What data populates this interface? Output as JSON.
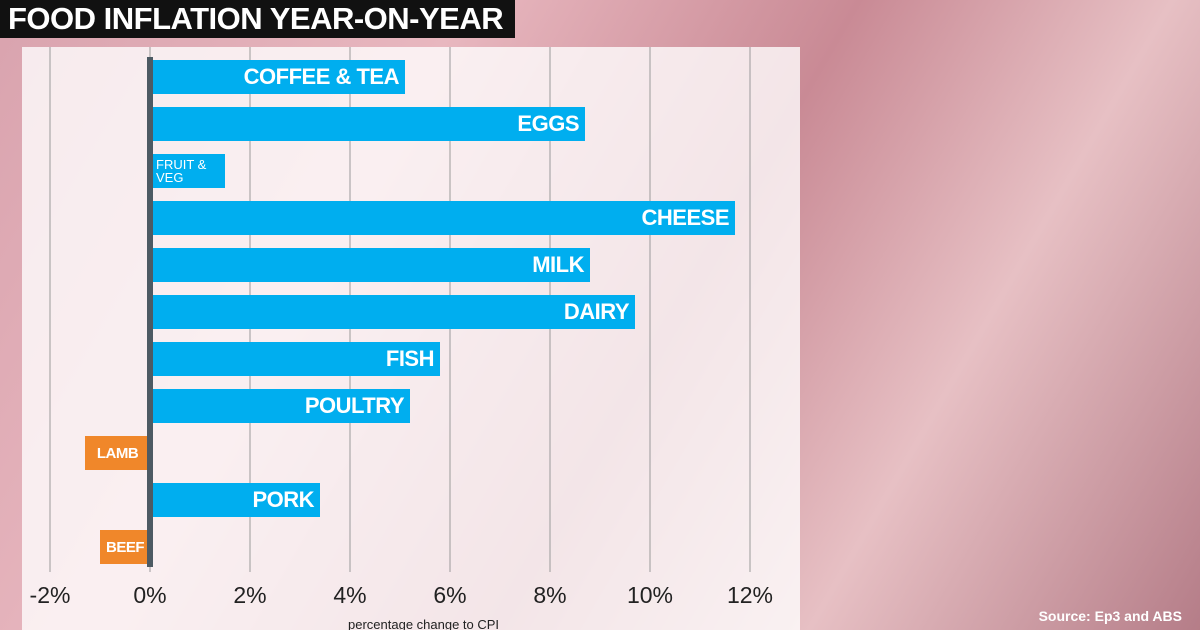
{
  "chart_data": {
    "type": "bar",
    "orientation": "horizontal",
    "title": "FOOD INFLATION YEAR-ON-YEAR",
    "x_label": "percentage change to CPI",
    "source": "Source: Ep3 and ABS",
    "categories": [
      "COFFEE & TEA",
      "EGGS",
      "FRUIT & VEG",
      "CHEESE",
      "MILK",
      "DAIRY",
      "FISH",
      "POULTRY",
      "LAMB",
      "PORK",
      "BEEF"
    ],
    "values": [
      5.1,
      8.7,
      1.5,
      11.7,
      8.8,
      9.7,
      5.8,
      5.2,
      -1.3,
      3.4,
      -1.0
    ],
    "colors": [
      "#00aeef",
      "#00aeef",
      "#00aeef",
      "#00aeef",
      "#00aeef",
      "#00aeef",
      "#00aeef",
      "#00aeef",
      "#f0872a",
      "#00aeef",
      "#f0872a"
    ],
    "xlim": [
      -2.5,
      13
    ],
    "xticks": [
      {
        "value": -2,
        "label": "-2%"
      },
      {
        "value": 0,
        "label": "0%"
      },
      {
        "value": 2,
        "label": "2%"
      },
      {
        "value": 4,
        "label": "4%"
      },
      {
        "value": 6,
        "label": "6%"
      },
      {
        "value": 8,
        "label": "8%"
      },
      {
        "value": 10,
        "label": "10%"
      },
      {
        "value": 12,
        "label": "12%"
      }
    ],
    "grid": true
  }
}
